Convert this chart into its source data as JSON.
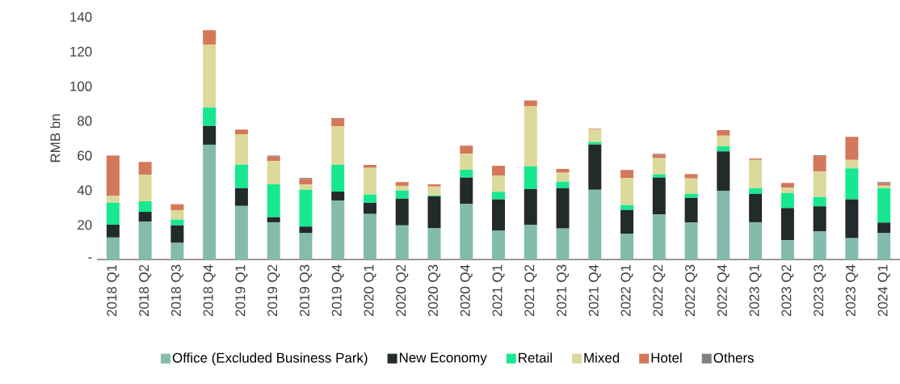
{
  "chart_data": {
    "type": "bar",
    "stacked": true,
    "ylabel": "RMB bn",
    "legend": "bottom",
    "grid": false,
    "categories": [
      "2018 Q1",
      "2018 Q2",
      "2018 Q3",
      "2018 Q4",
      "2019 Q1",
      "2019 Q2",
      "2019 Q3",
      "2019 Q4",
      "2020 Q1",
      "2020 Q2",
      "2020 Q3",
      "2020 Q4",
      "2021 Q1",
      "2021 Q2",
      "2021 Q3",
      "2021 Q4",
      "2022 Q1",
      "2022 Q2",
      "2022 Q3",
      "2022 Q4",
      "2023 Q1",
      "2023 Q2",
      "2023 Q3",
      "2023 Q4",
      "2024 Q1"
    ],
    "ylim": [
      0,
      140
    ],
    "yticks": [
      {
        "value": 0,
        "label": "-"
      },
      20,
      40,
      60,
      80,
      100,
      120,
      140
    ],
    "series": [
      {
        "name": "Office (Excluded Business Park)",
        "color": "#83bbad",
        "values": [
          12.7,
          21.8,
          9.6,
          66.3,
          30.9,
          21.5,
          15.4,
          34.1,
          26.3,
          19.7,
          18.2,
          32.2,
          16.8,
          19.9,
          17.9,
          40.3,
          14.9,
          26.0,
          21.3,
          39.7,
          21.5,
          11.1,
          16.2,
          12.3,
          15.4
        ]
      },
      {
        "name": "New Economy",
        "color": "#222a2b",
        "values": [
          7.4,
          5.7,
          10.1,
          10.8,
          10.3,
          2.9,
          3.6,
          5.1,
          6.4,
          15.4,
          18.3,
          15.1,
          17.9,
          20.8,
          23.3,
          26.1,
          13.7,
          21.3,
          14.3,
          22.7,
          16.4,
          18.6,
          14.5,
          22.4,
          5.9
        ]
      },
      {
        "name": "Retail",
        "color": "#17e88f",
        "values": [
          12.7,
          6.1,
          3.3,
          10.6,
          13.5,
          19.0,
          21.3,
          15.4,
          4.8,
          4.7,
          0.5,
          4.5,
          4.4,
          13.1,
          3.7,
          1.4,
          2.8,
          1.8,
          2.3,
          2.9,
          3.2,
          8.7,
          5.4,
          17.9,
          19.9
        ]
      },
      {
        "name": "Mixed",
        "color": "#dbd99c",
        "values": [
          3.9,
          15.4,
          5.5,
          36.4,
          17.6,
          13.5,
          3.0,
          22.4,
          15.4,
          2.7,
          5.1,
          9.2,
          9.4,
          34.6,
          5.2,
          7.2,
          15.7,
          9.4,
          8.9,
          6.2,
          16.4,
          3.1,
          14.8,
          4.9,
          1.4
        ]
      },
      {
        "name": "Hotel",
        "color": "#d3785a",
        "values": [
          23.3,
          7.3,
          3.4,
          8.3,
          2.7,
          2.5,
          3.2,
          4.3,
          1.7,
          2.2,
          1.3,
          4.7,
          5.6,
          3.4,
          2.2,
          0.5,
          4.6,
          2.0,
          2.5,
          3.2,
          0.8,
          2.7,
          8.8,
          13.3,
          1.4
        ]
      },
      {
        "name": "Others",
        "color": "#7f7f7f",
        "values": [
          0,
          0,
          0,
          0,
          0,
          0.6,
          0.6,
          0.4,
          0,
          null,
          0,
          0,
          0,
          0,
          0,
          0,
          0,
          0.5,
          0,
          0,
          0,
          0,
          0.5,
          0,
          0.7
        ]
      }
    ]
  }
}
